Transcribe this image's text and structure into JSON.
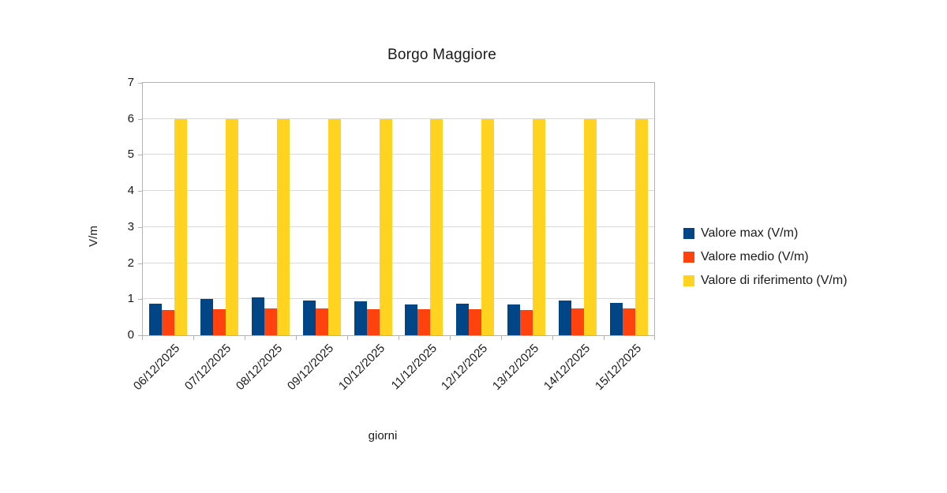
{
  "chart_data": {
    "type": "bar",
    "title": "Borgo Maggiore",
    "xlabel": "giorni",
    "ylabel": "V/m",
    "ylim": [
      0,
      7
    ],
    "ytick_step": 1,
    "grid": true,
    "legend_position": "right",
    "categories": [
      "06/12/2025",
      "07/12/2025",
      "08/12/2025",
      "09/12/2025",
      "10/12/2025",
      "11/12/2025",
      "12/12/2025",
      "13/12/2025",
      "14/12/2025",
      "15/12/2025"
    ],
    "series": [
      {
        "key": "valore-max",
        "name": "Valore max (V/m)",
        "color": "#004586",
        "values": [
          0.87,
          1.0,
          1.05,
          0.96,
          0.94,
          0.86,
          0.87,
          0.85,
          0.96,
          0.9
        ]
      },
      {
        "key": "valore-medio",
        "name": "Valore medio (V/m)",
        "color": "#FF420E",
        "values": [
          0.7,
          0.72,
          0.74,
          0.74,
          0.73,
          0.73,
          0.72,
          0.71,
          0.74,
          0.75
        ]
      },
      {
        "key": "valore-riferimento",
        "name": "Valore di riferimento (V/m)",
        "color": "#FFD320",
        "values": [
          6,
          6,
          6,
          6,
          6,
          6,
          6,
          6,
          6,
          6
        ]
      }
    ]
  },
  "colors": {
    "background": "#FFFFFF",
    "gridline": "#D9D9D9",
    "axis": "#B3B3B3",
    "text": "#1A1A1A"
  }
}
